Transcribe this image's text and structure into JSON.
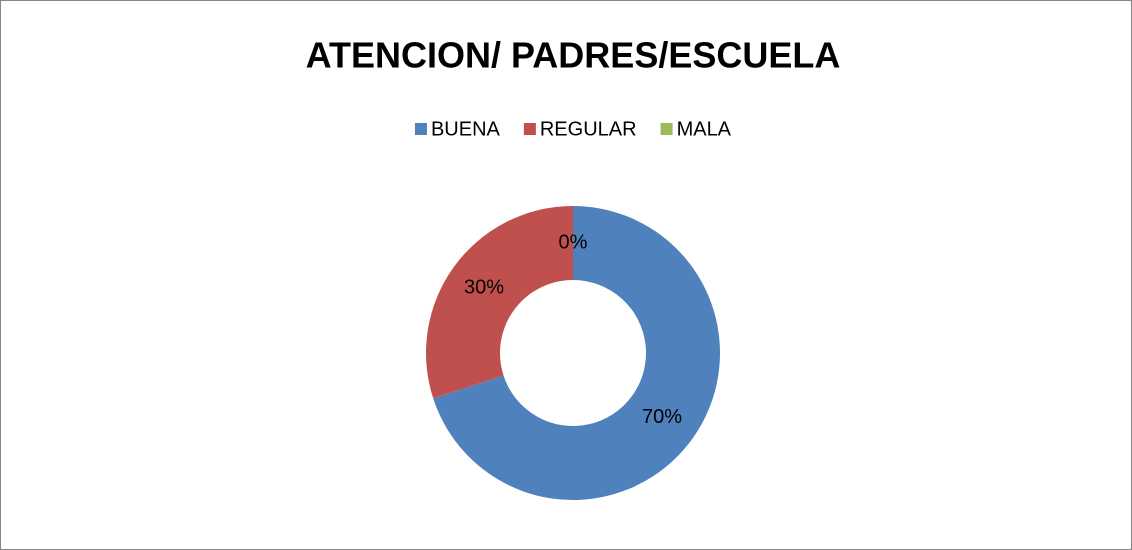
{
  "chart_data": {
    "type": "donut",
    "title": "ATENCION/ PADRES/ESCUELA",
    "categories": [
      "BUENA",
      "REGULAR",
      "MALA"
    ],
    "values": [
      70,
      30,
      0
    ],
    "value_labels": [
      "70%",
      "30%",
      "0%"
    ],
    "colors": [
      "#4f81bd",
      "#c0504d",
      "#9bbb59"
    ],
    "legend": "top"
  }
}
